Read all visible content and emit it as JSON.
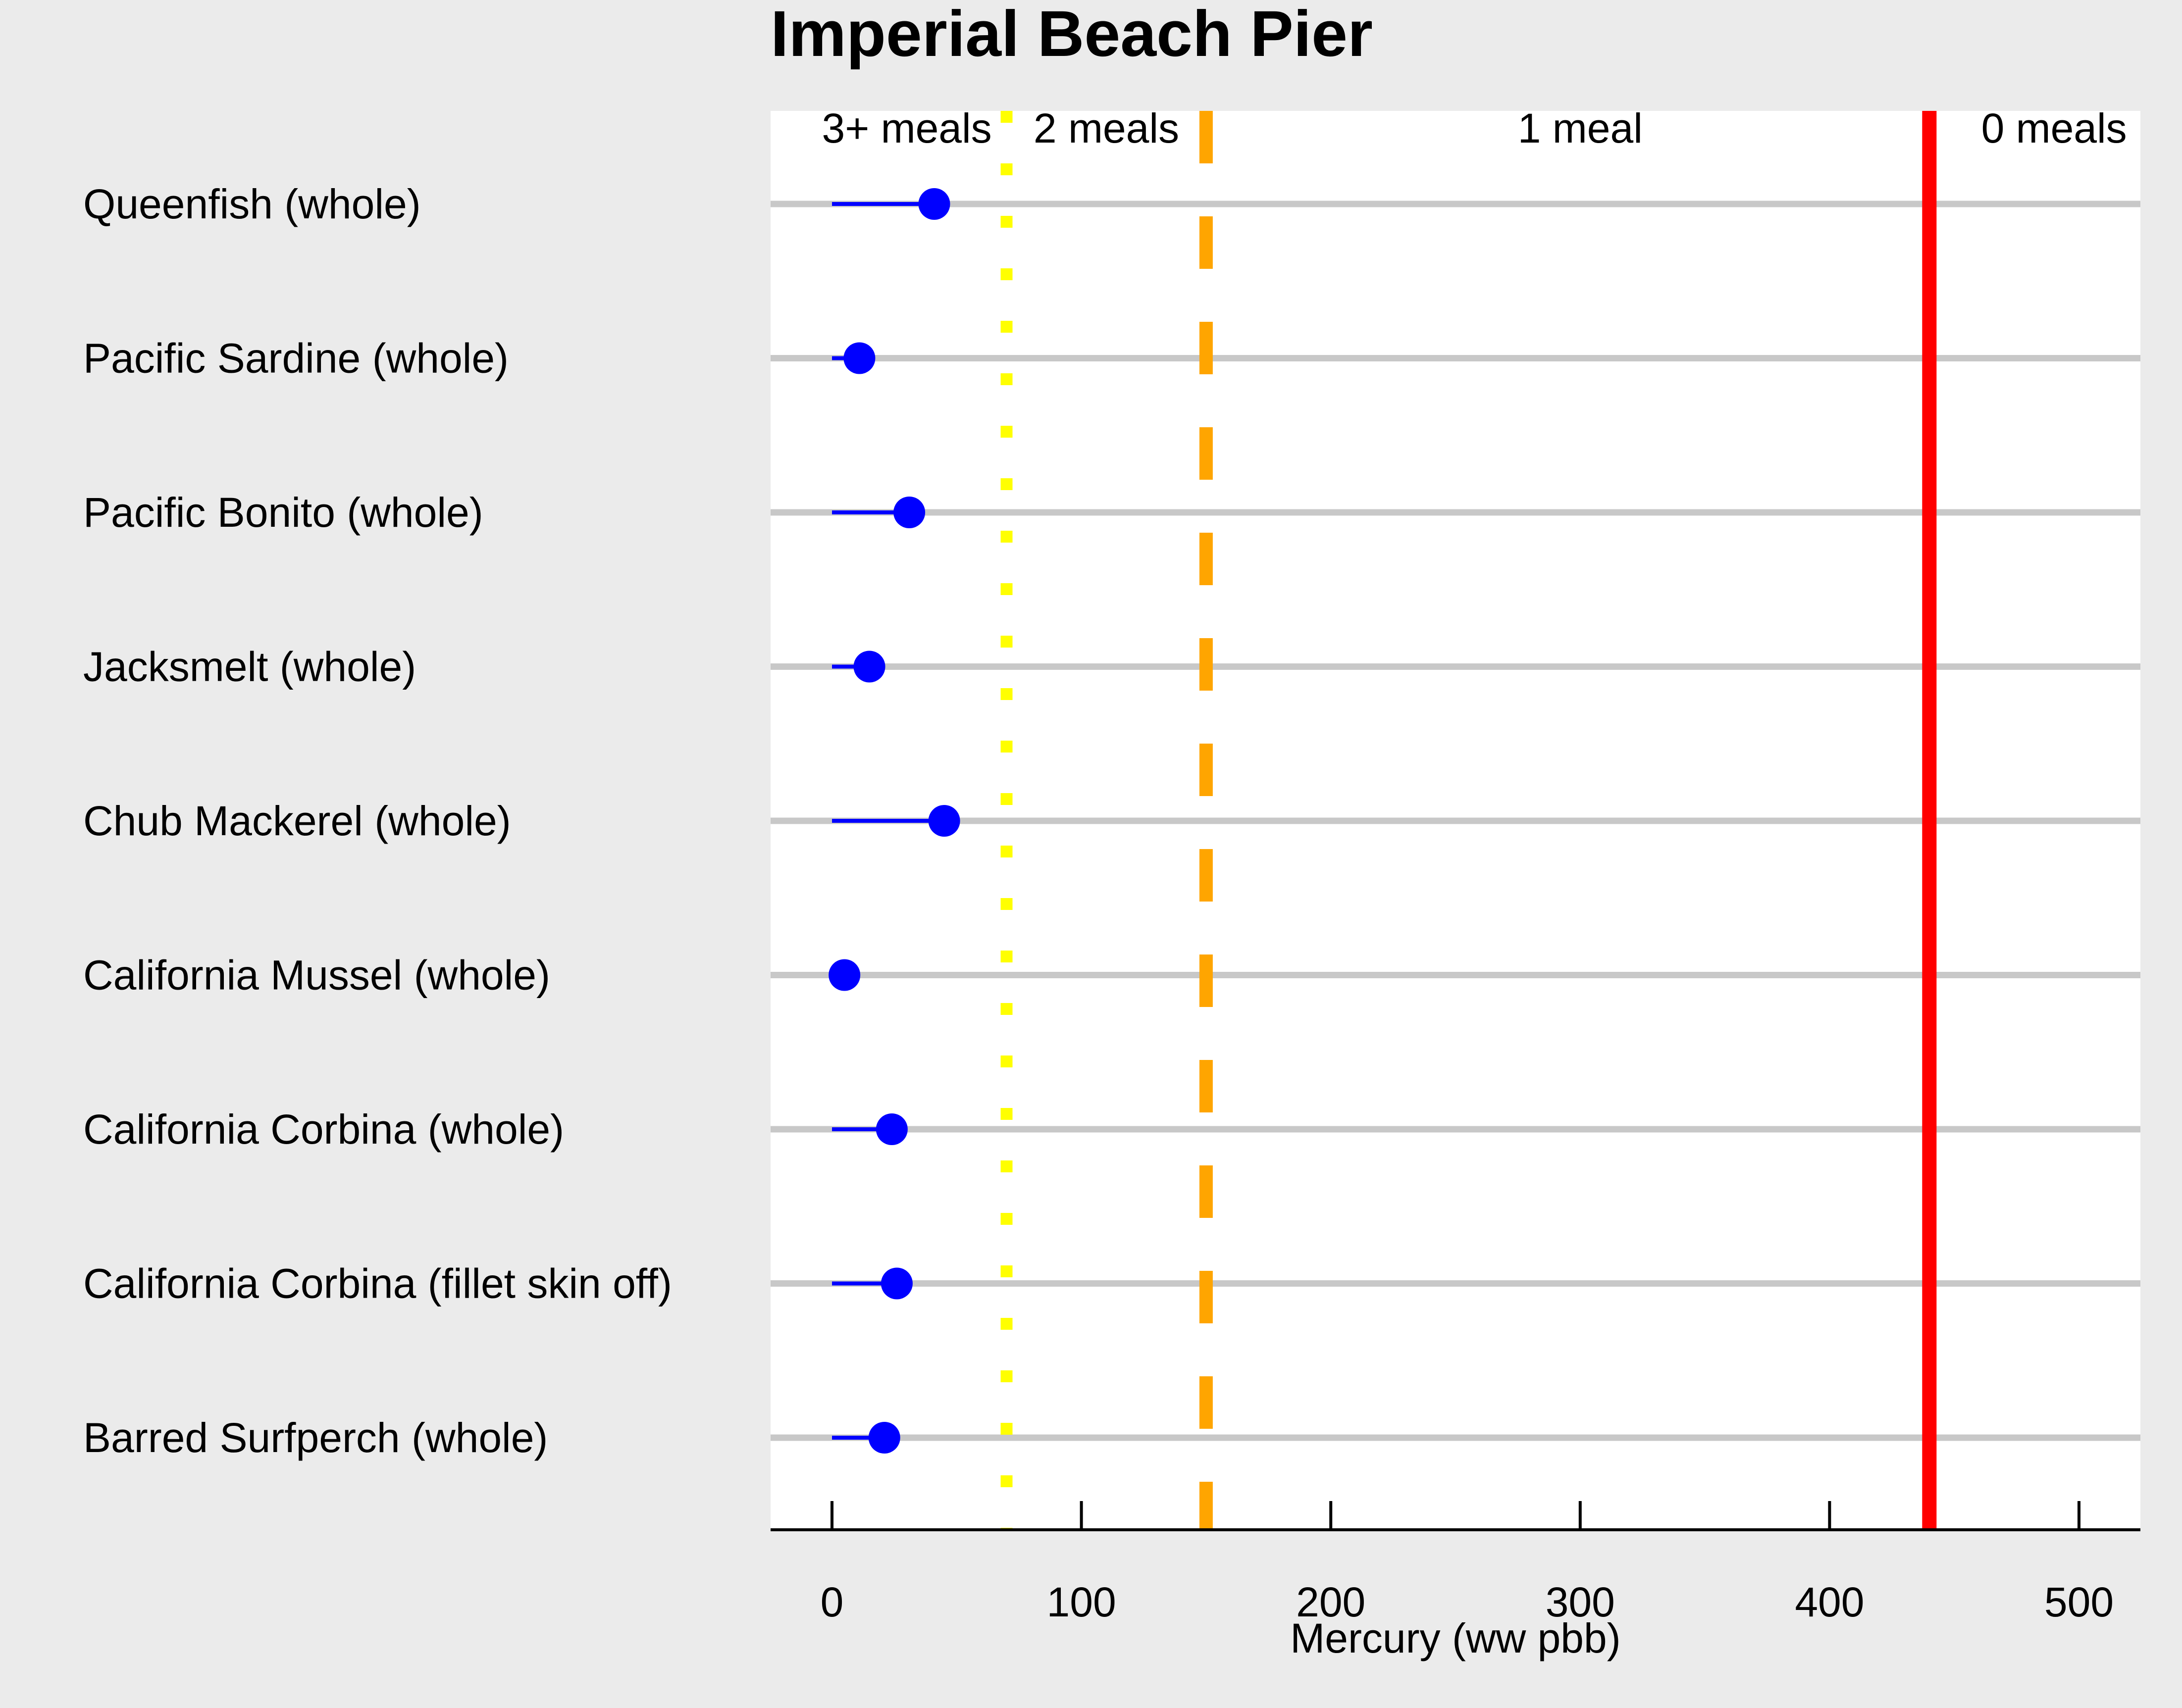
{
  "chart_data": {
    "type": "dot-range",
    "title": "Imperial Beach Pier",
    "xlabel": "Mercury (ww pbb)",
    "xlim": [
      -25,
      525
    ],
    "xticks": [
      0,
      100,
      200,
      300,
      400,
      500
    ],
    "categories": [
      "Queenfish (whole)",
      "Pacific Sardine (whole)",
      "Pacific Bonito (whole)",
      "Jacksmelt (whole)",
      "Chub Mackerel (whole)",
      "California Mussel (whole)",
      "California Corbina (whole)",
      "California Corbina (fillet skin off)",
      "Barred Surfperch (whole)"
    ],
    "values": [
      41,
      11,
      31,
      15,
      45,
      5,
      24,
      26,
      21
    ],
    "range_low": [
      0,
      0,
      0,
      0,
      0,
      5,
      0,
      0,
      0
    ],
    "thresholds": [
      {
        "value": 70,
        "color": "#ffff00",
        "style": "dotted"
      },
      {
        "value": 150,
        "color": "#ffa500",
        "style": "dashed"
      },
      {
        "value": 440,
        "color": "#ff0000",
        "style": "solid"
      }
    ],
    "zone_labels": [
      {
        "label": "3+ meals",
        "x": 30
      },
      {
        "label": "2 meals",
        "x": 110
      },
      {
        "label": "1 meal",
        "x": 300
      },
      {
        "label": "0 meals",
        "x": 490
      }
    ],
    "colors": {
      "point": "#0000ff",
      "gridline": "#c8c8c8",
      "panel": "#ffffff",
      "background": "#ebebeb"
    },
    "grid": true
  }
}
